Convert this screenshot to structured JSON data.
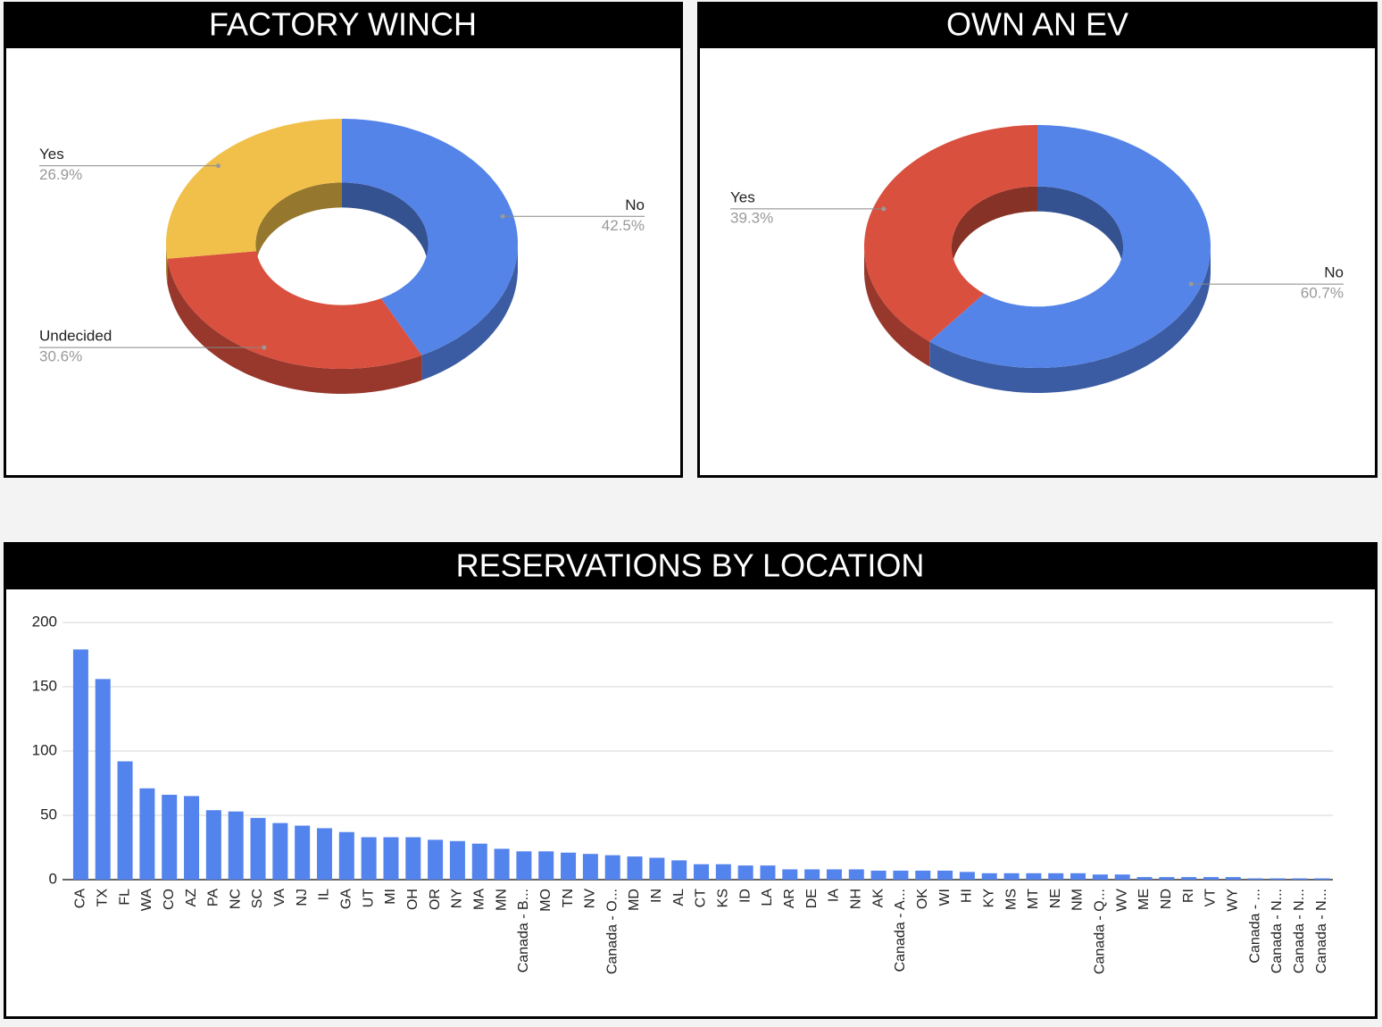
{
  "chart_data": [
    {
      "type": "donut",
      "title": "FACTORY WINCH",
      "categories": [
        "No",
        "Undecided",
        "Yes"
      ],
      "values": [
        42.5,
        30.6,
        26.9
      ],
      "value_labels": [
        "42.5%",
        "30.6%",
        "26.9%"
      ],
      "colors": [
        "#5584e8",
        "#d9503f",
        "#f1c04a"
      ]
    },
    {
      "type": "donut",
      "title": "OWN AN EV",
      "categories": [
        "No",
        "Yes"
      ],
      "values": [
        60.7,
        39.3
      ],
      "value_labels": [
        "60.7%",
        "39.3%"
      ],
      "colors": [
        "#5584e8",
        "#d9503f"
      ]
    },
    {
      "type": "bar",
      "title": "RESERVATIONS BY LOCATION",
      "categories": [
        "CA",
        "TX",
        "FL",
        "WA",
        "CO",
        "AZ",
        "PA",
        "NC",
        "SC",
        "VA",
        "NJ",
        "IL",
        "GA",
        "UT",
        "MI",
        "OH",
        "OR",
        "NY",
        "MA",
        "MN",
        "Canada - B...",
        "MO",
        "TN",
        "NV",
        "Canada - O...",
        "MD",
        "IN",
        "AL",
        "CT",
        "KS",
        "ID",
        "LA",
        "AR",
        "DE",
        "IA",
        "NH",
        "AK",
        "Canada - A...",
        "OK",
        "WI",
        "HI",
        "KY",
        "MS",
        "MT",
        "NE",
        "NM",
        "Canada - Q...",
        "WV",
        "ME",
        "ND",
        "RI",
        "VT",
        "WY",
        "Canada - ...",
        "Canada - N...",
        "Canada - N...",
        "Canada - N..."
      ],
      "values": [
        179,
        156,
        92,
        71,
        66,
        65,
        54,
        53,
        48,
        44,
        42,
        40,
        37,
        33,
        33,
        33,
        31,
        30,
        28,
        24,
        22,
        22,
        21,
        20,
        19,
        18,
        17,
        15,
        12,
        12,
        11,
        11,
        8,
        8,
        8,
        8,
        7,
        7,
        7,
        7,
        6,
        5,
        5,
        5,
        5,
        5,
        4,
        4,
        2,
        2,
        2,
        2,
        2,
        1,
        1,
        1,
        1
      ],
      "color": "#5383ec",
      "ylim": [
        0,
        200
      ],
      "yticks": [
        0,
        50,
        100,
        150,
        200
      ],
      "grid": true
    }
  ]
}
